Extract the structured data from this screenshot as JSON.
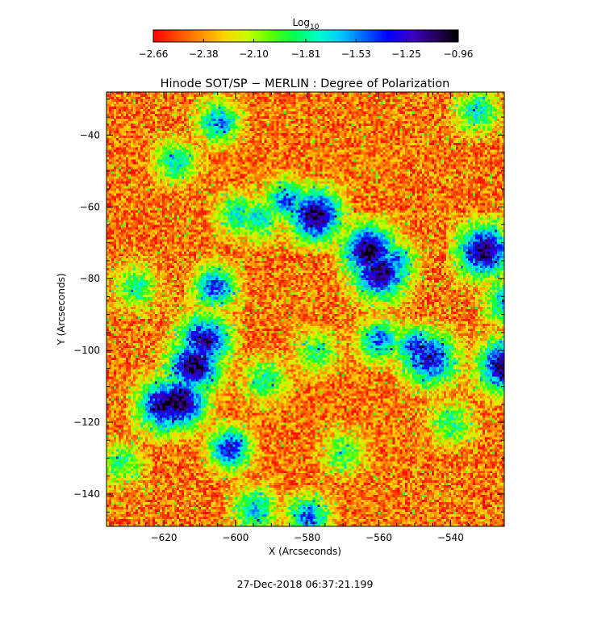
{
  "chart_data": {
    "type": "heatmap",
    "title": "Hinode SOT/SP − MERLIN : Degree of Polarization",
    "xlabel": "X (Arcseconds)",
    "ylabel": "Y (Arcseconds)",
    "xlim": [
      -636,
      -525
    ],
    "ylim": [
      -149,
      -28
    ],
    "x_ticks": [
      -620,
      -600,
      -580,
      -560,
      -540
    ],
    "x_tick_labels": [
      "−620",
      "−600",
      "−580",
      "−560",
      "−540"
    ],
    "y_ticks": [
      -40,
      -60,
      -80,
      -100,
      -120,
      -140
    ],
    "y_tick_labels": [
      "−40",
      "−60",
      "−80",
      "−100",
      "−120",
      "−140"
    ],
    "colorbar": {
      "label_main": "Log",
      "label_sub": "10",
      "range": [
        -2.66,
        -0.96
      ],
      "tick_values": [
        -2.66,
        -2.38,
        -2.1,
        -1.81,
        -1.53,
        -1.25,
        -0.96
      ],
      "tick_labels": [
        "−2.66",
        "−2.38",
        "−2.10",
        "−1.81",
        "−1.53",
        "−1.25",
        "−0.96"
      ],
      "colormap": [
        "#ff0000",
        "#ff4a00",
        "#ff8c00",
        "#ffd200",
        "#c8ff00",
        "#5aff00",
        "#00ff50",
        "#00ffc8",
        "#00c8ff",
        "#0064ff",
        "#0000ff",
        "#3c00c8",
        "#280060",
        "#000000"
      ]
    },
    "background_level": -2.45,
    "features": [
      {
        "x": -578,
        "y": -62,
        "level": -1.05
      },
      {
        "x": -586,
        "y": -58,
        "level": -1.45
      },
      {
        "x": -563,
        "y": -72,
        "level": -1.0
      },
      {
        "x": -560,
        "y": -78,
        "level": -1.05
      },
      {
        "x": -556,
        "y": -75,
        "level": -1.5
      },
      {
        "x": -600,
        "y": -62,
        "level": -1.75
      },
      {
        "x": -594,
        "y": -63,
        "level": -1.7
      },
      {
        "x": -606,
        "y": -82,
        "level": -1.4
      },
      {
        "x": -609,
        "y": -97,
        "level": -1.2
      },
      {
        "x": -612,
        "y": -104,
        "level": -1.05
      },
      {
        "x": -616,
        "y": -114,
        "level": -1.0
      },
      {
        "x": -620,
        "y": -115,
        "level": -1.1
      },
      {
        "x": -602,
        "y": -127,
        "level": -1.3
      },
      {
        "x": -560,
        "y": -97,
        "level": -1.5
      },
      {
        "x": -550,
        "y": -99,
        "level": -1.35
      },
      {
        "x": -546,
        "y": -102,
        "level": -1.25
      },
      {
        "x": -531,
        "y": -72,
        "level": -1.05
      },
      {
        "x": -525,
        "y": -104,
        "level": -1.05
      },
      {
        "x": -525,
        "y": -86,
        "level": -1.6
      },
      {
        "x": -605,
        "y": -36,
        "level": -1.55
      },
      {
        "x": -617,
        "y": -47,
        "level": -1.7
      },
      {
        "x": -628,
        "y": -82,
        "level": -1.8
      },
      {
        "x": -533,
        "y": -33,
        "level": -1.7
      },
      {
        "x": -595,
        "y": -144,
        "level": -1.6
      },
      {
        "x": -580,
        "y": -146,
        "level": -1.5
      },
      {
        "x": -592,
        "y": -108,
        "level": -1.8
      },
      {
        "x": -578,
        "y": -100,
        "level": -1.85
      },
      {
        "x": -540,
        "y": -120,
        "level": -1.85
      },
      {
        "x": -632,
        "y": -131,
        "level": -1.85
      },
      {
        "x": -570,
        "y": -128,
        "level": -1.9
      }
    ]
  },
  "footer": {
    "timestamp": "27-Dec-2018 06:37:21.199"
  }
}
